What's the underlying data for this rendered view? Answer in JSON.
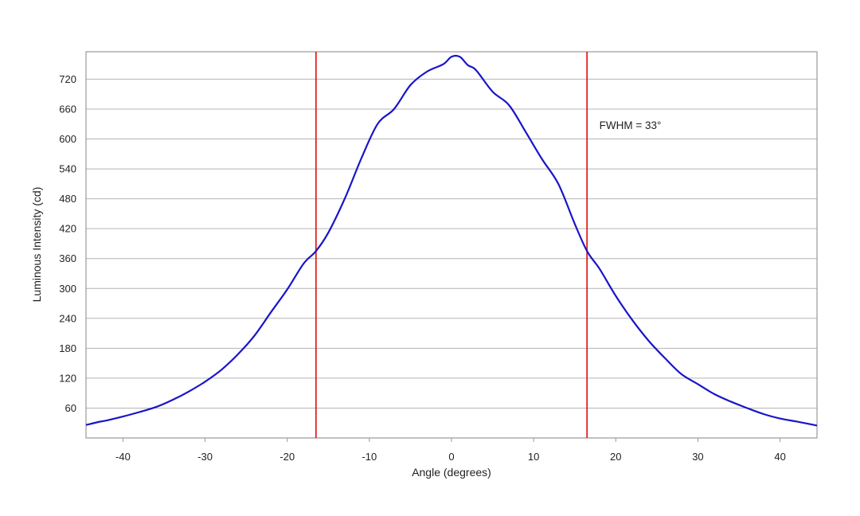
{
  "chart_data": {
    "type": "line",
    "title": "",
    "xlabel": "Angle (degrees)",
    "ylabel": "Luminous Intensity (cd)",
    "xlim": [
      -44.5,
      44.5
    ],
    "ylim": [
      0,
      775
    ],
    "x_ticks": [
      -40,
      -30,
      -20,
      -10,
      0,
      10,
      20,
      30,
      40
    ],
    "x_tick_labels": [
      "-40",
      "-30",
      "-20",
      "-10",
      "0",
      "10",
      "20",
      "30",
      "40"
    ],
    "y_ticks": [
      60,
      120,
      180,
      240,
      300,
      360,
      420,
      480,
      540,
      600,
      660,
      720
    ],
    "y_tick_labels": [
      "60",
      "120",
      "180",
      "240",
      "300",
      "360",
      "420",
      "480",
      "540",
      "600",
      "660",
      "720"
    ],
    "grid": "horizontal",
    "legend": "none",
    "series": [
      {
        "color": "#1a14c8",
        "x": [
          -44.5,
          -43,
          -42,
          -40,
          -38,
          -36,
          -34,
          -32,
          -30,
          -28,
          -26,
          -24,
          -22,
          -20,
          -18,
          -16.5,
          -15,
          -13,
          -11,
          -9,
          -7,
          -5,
          -3,
          -1,
          0,
          1,
          2,
          3,
          5,
          7,
          9,
          11,
          13,
          15,
          16.5,
          18,
          20,
          22,
          24,
          26,
          28,
          30,
          32,
          34,
          36,
          38,
          40,
          42,
          44.5
        ],
        "y": [
          26,
          32,
          35,
          43,
          52,
          62,
          76,
          93,
          113,
          137,
          168,
          205,
          252,
          298,
          350,
          375,
          412,
          480,
          560,
          630,
          660,
          708,
          735,
          750,
          765,
          765,
          748,
          738,
          695,
          668,
          615,
          560,
          510,
          430,
          375,
          340,
          285,
          237,
          195,
          160,
          128,
          108,
          88,
          73,
          60,
          48,
          39,
          33,
          25
        ]
      }
    ],
    "vlines": [
      {
        "x": -16.5,
        "color": "#e02020"
      },
      {
        "x": 16.5,
        "color": "#e02020"
      }
    ],
    "annotation": {
      "text": "FWHM = 33°",
      "x": 18.0,
      "y": 620
    }
  }
}
